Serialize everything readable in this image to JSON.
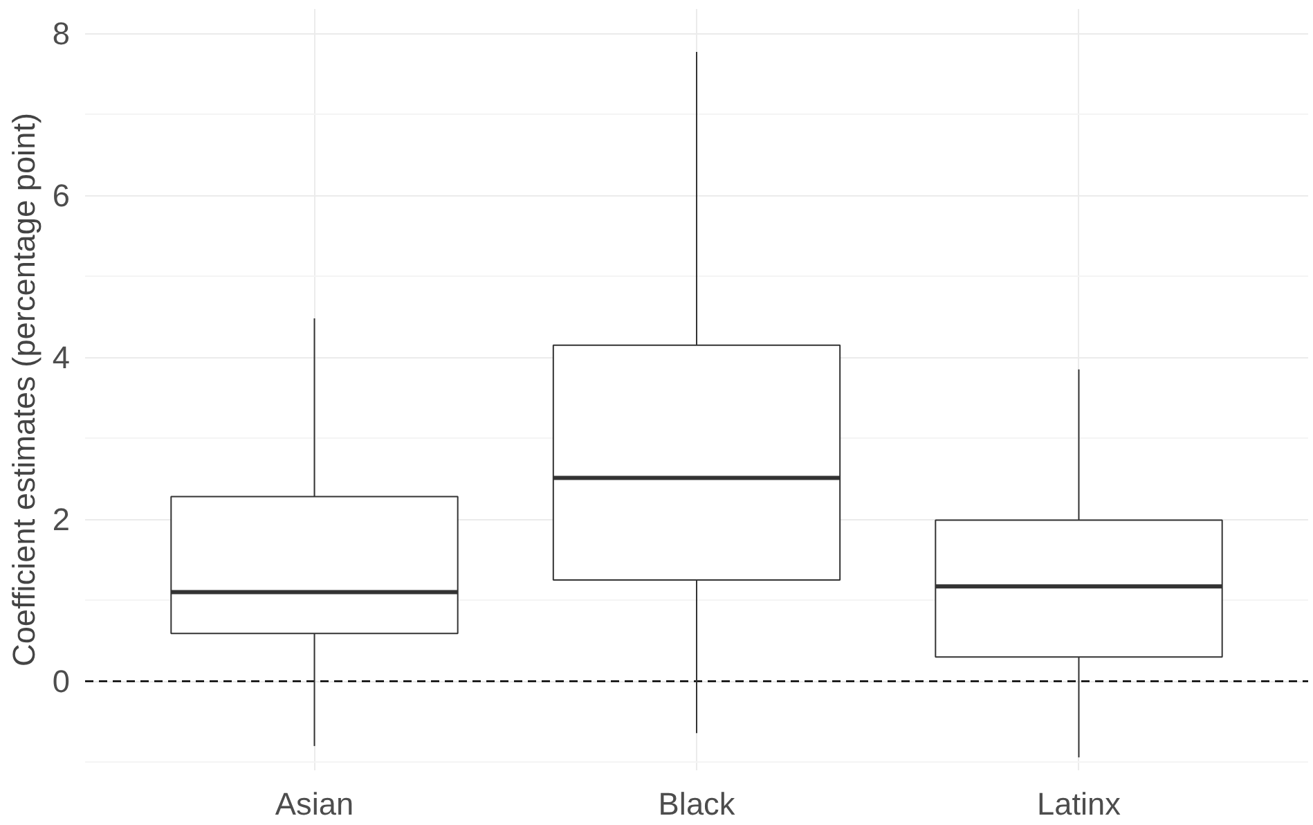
{
  "chart_data": {
    "type": "box",
    "ylabel": "Coefficient estimates (percentage point)",
    "categories": [
      "Asian",
      "Black",
      "Latinx"
    ],
    "boxes": [
      {
        "low": -0.8,
        "q1": 0.59,
        "median": 1.1,
        "q3": 2.28,
        "high": 4.48
      },
      {
        "low": -0.64,
        "q1": 1.25,
        "median": 2.51,
        "q3": 4.15,
        "high": 7.77
      },
      {
        "low": -0.94,
        "q1": 0.3,
        "median": 1.17,
        "q3": 1.99,
        "high": 3.85
      }
    ],
    "ylim": [
      -1.1,
      8.3
    ],
    "yticks": [
      0,
      2,
      4,
      6,
      8
    ],
    "grid": true,
    "ref_lines": [
      {
        "axis": "y",
        "value": 0,
        "line_style": "dashed",
        "color": "#000000"
      }
    ]
  }
}
